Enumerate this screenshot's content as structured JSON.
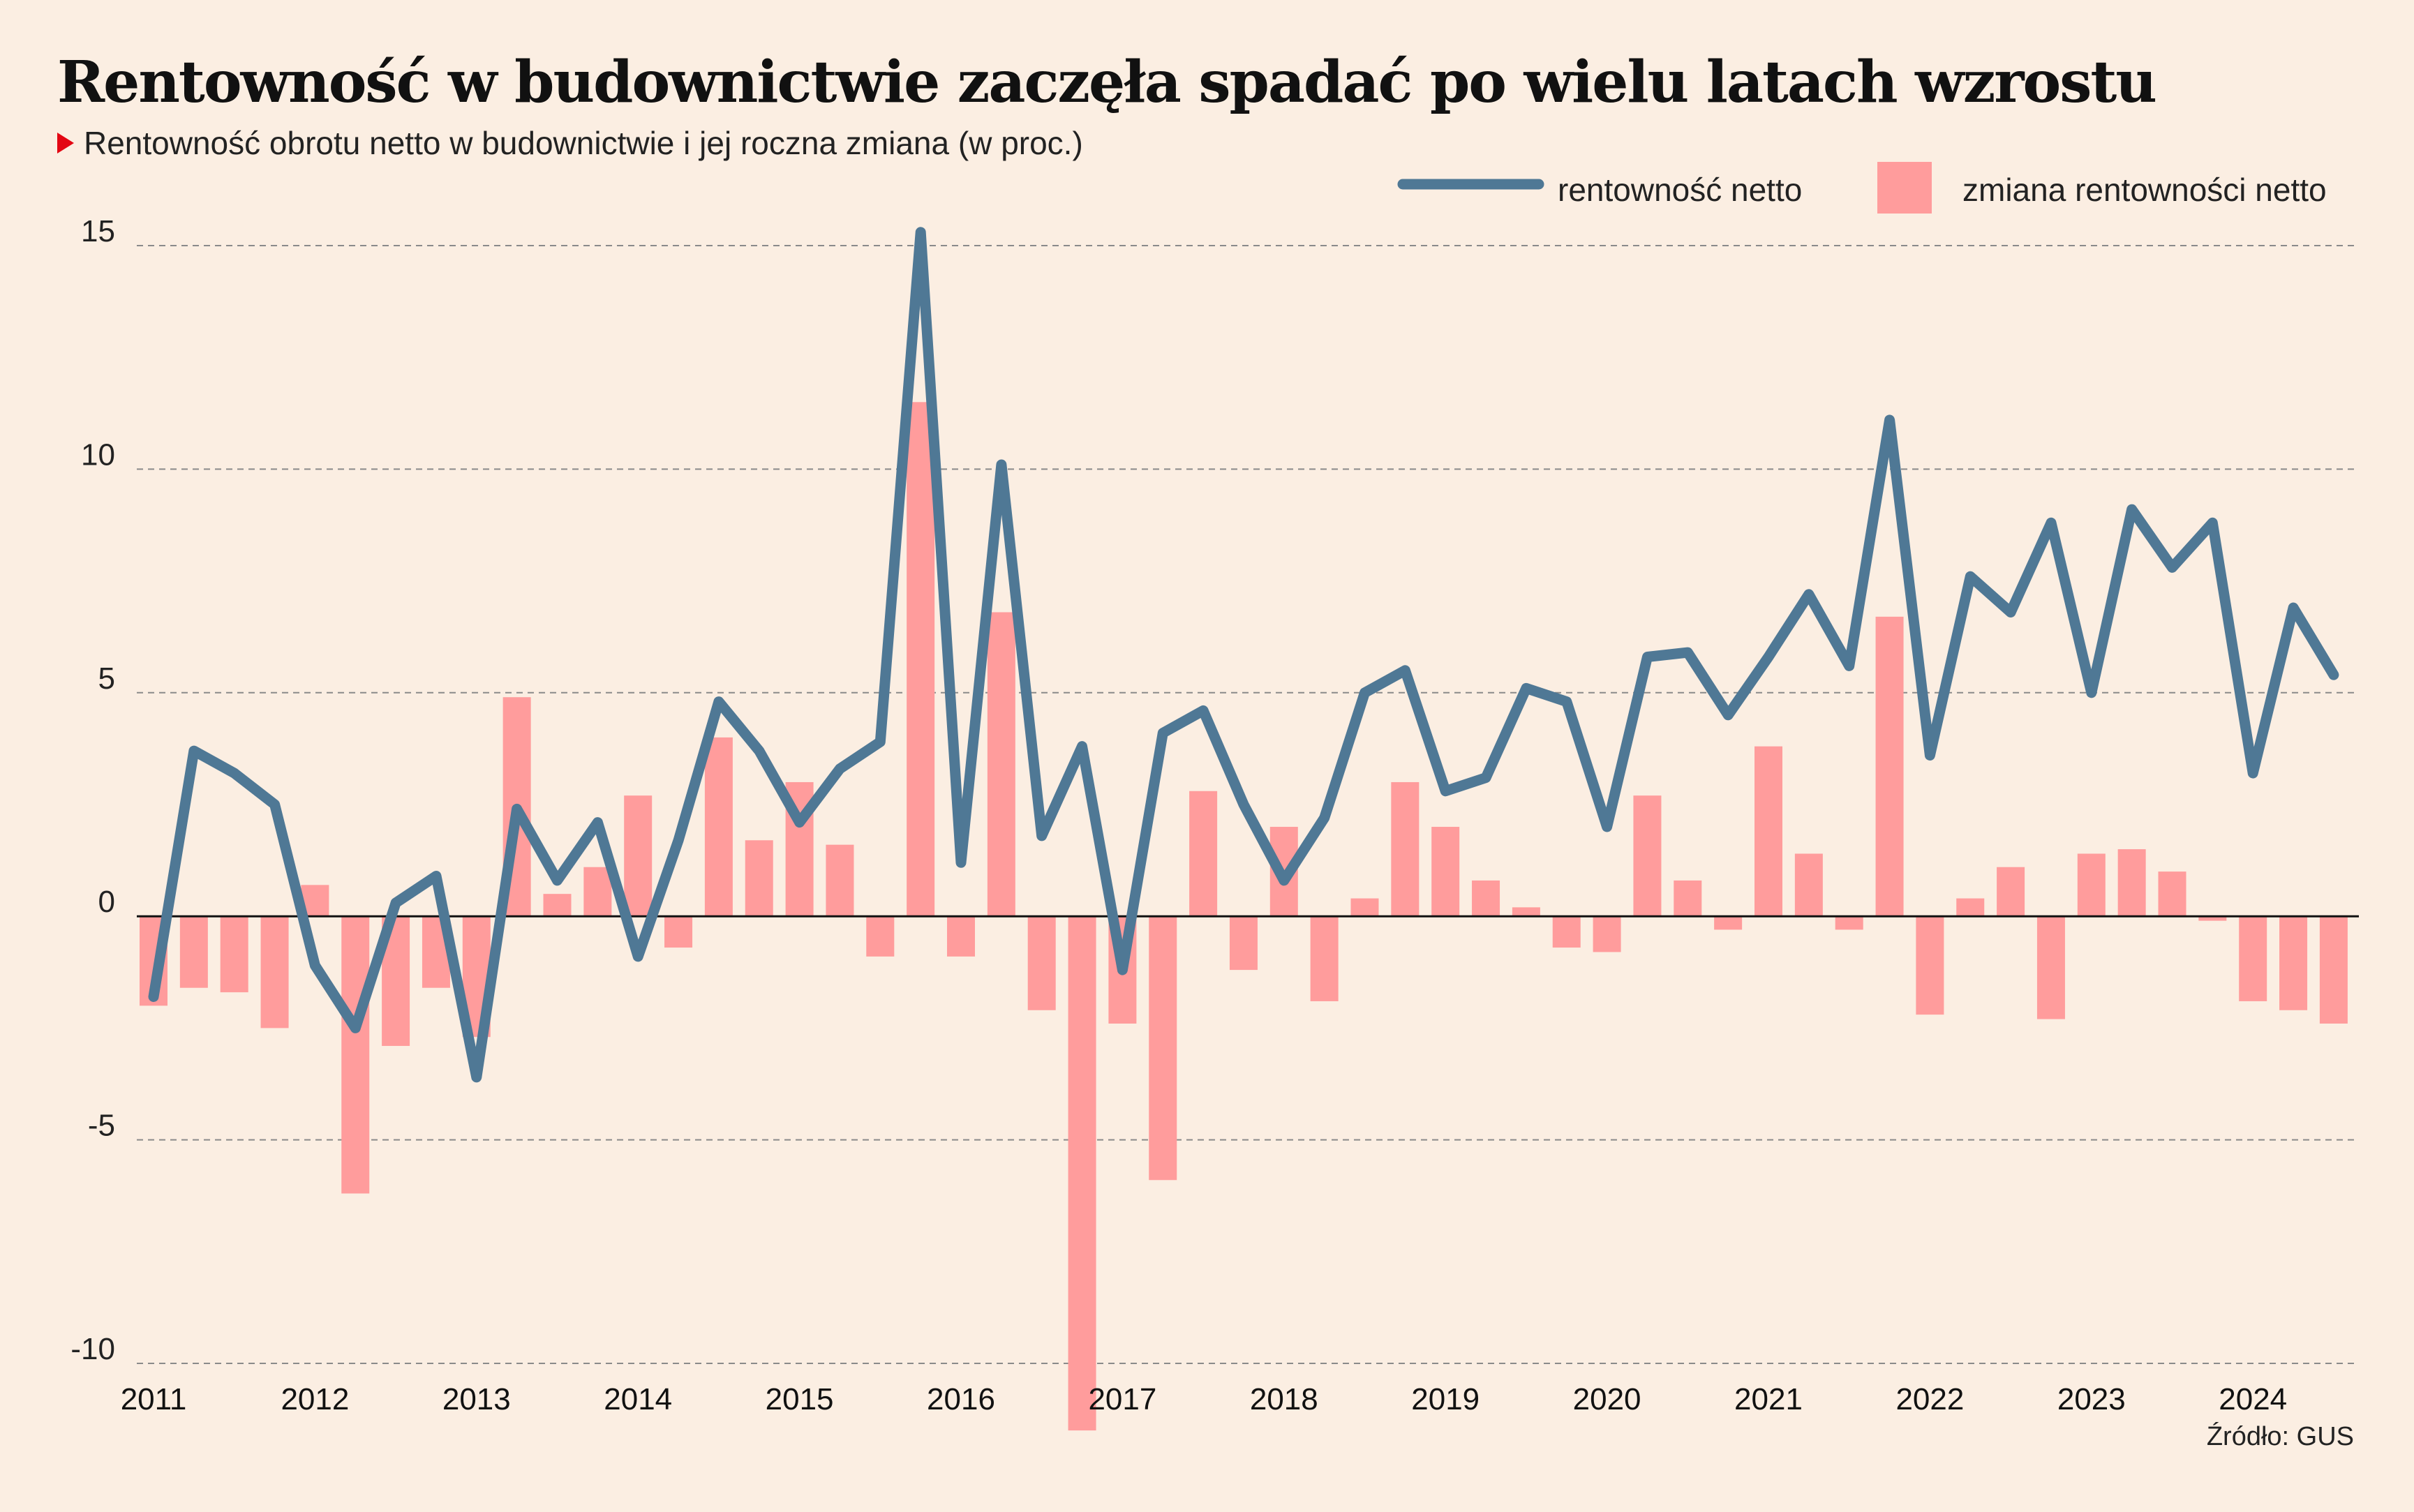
{
  "title": "Rentowność w budownictwie zaczęła spadać po wielu latach wzrostu",
  "subtitle": "Rentowność obrotu netto w budownictwie i jej roczna zmiana (w proc.)",
  "source": "Źródło: GUS",
  "colors": {
    "background": "#fbeee2",
    "line": "#4f7895",
    "bars": "#ff9c9c",
    "marker": "#e30613"
  },
  "chart_data": {
    "type": "line+bar",
    "legend": [
      "rentowność netto",
      "zmiana rentowności netto"
    ],
    "legend_position": "top-right",
    "ylim": [
      -10,
      15
    ],
    "yticks": [
      "15",
      "10",
      "5",
      "0",
      "-5",
      "-10"
    ],
    "xticks": [
      "2011",
      "2012",
      "2013",
      "2014",
      "2015",
      "2016",
      "2017",
      "2018",
      "2019",
      "2020",
      "2021",
      "2022",
      "2023",
      "2024"
    ],
    "grid": "horizontal dashed",
    "quarters_per_year": 4,
    "series": [
      {
        "name": "rentowność netto",
        "type": "line",
        "values": [
          -1.8,
          3.7,
          3.2,
          2.5,
          -1.1,
          -2.5,
          0.3,
          0.9,
          -3.6,
          2.4,
          0.8,
          2.1,
          -0.9,
          1.7,
          4.8,
          3.7,
          2.1,
          3.3,
          3.9,
          15.3,
          1.2,
          10.1,
          1.8,
          3.8,
          -1.2,
          4.1,
          4.6,
          2.5,
          0.8,
          2.2,
          5.0,
          5.5,
          2.8,
          3.1,
          5.1,
          4.8,
          2.0,
          5.8,
          5.9,
          4.5,
          5.8,
          7.2,
          5.6,
          11.1,
          3.6,
          7.6,
          6.8,
          8.8,
          5.0,
          9.1,
          7.8,
          8.8,
          3.2,
          6.9,
          5.4
        ]
      },
      {
        "name": "zmiana rentowności netto",
        "type": "bar",
        "values": [
          -2.0,
          -1.6,
          -1.7,
          -2.5,
          0.7,
          -6.2,
          -2.9,
          -1.6,
          -2.7,
          4.9,
          0.5,
          1.1,
          2.7,
          -0.7,
          4.0,
          1.7,
          3.0,
          1.6,
          -0.9,
          11.5,
          -0.9,
          6.8,
          -2.1,
          -11.5,
          -2.4,
          -5.9,
          2.8,
          -1.2,
          2.0,
          -1.9,
          0.4,
          3.0,
          2.0,
          0.8,
          0.2,
          -0.7,
          -0.8,
          2.7,
          0.8,
          -0.3,
          3.8,
          1.4,
          -0.3,
          6.7,
          -2.2,
          0.4,
          1.1,
          -2.3,
          1.4,
          1.5,
          1.0,
          -0.1,
          -1.9,
          -2.1,
          -2.4
        ]
      }
    ]
  }
}
